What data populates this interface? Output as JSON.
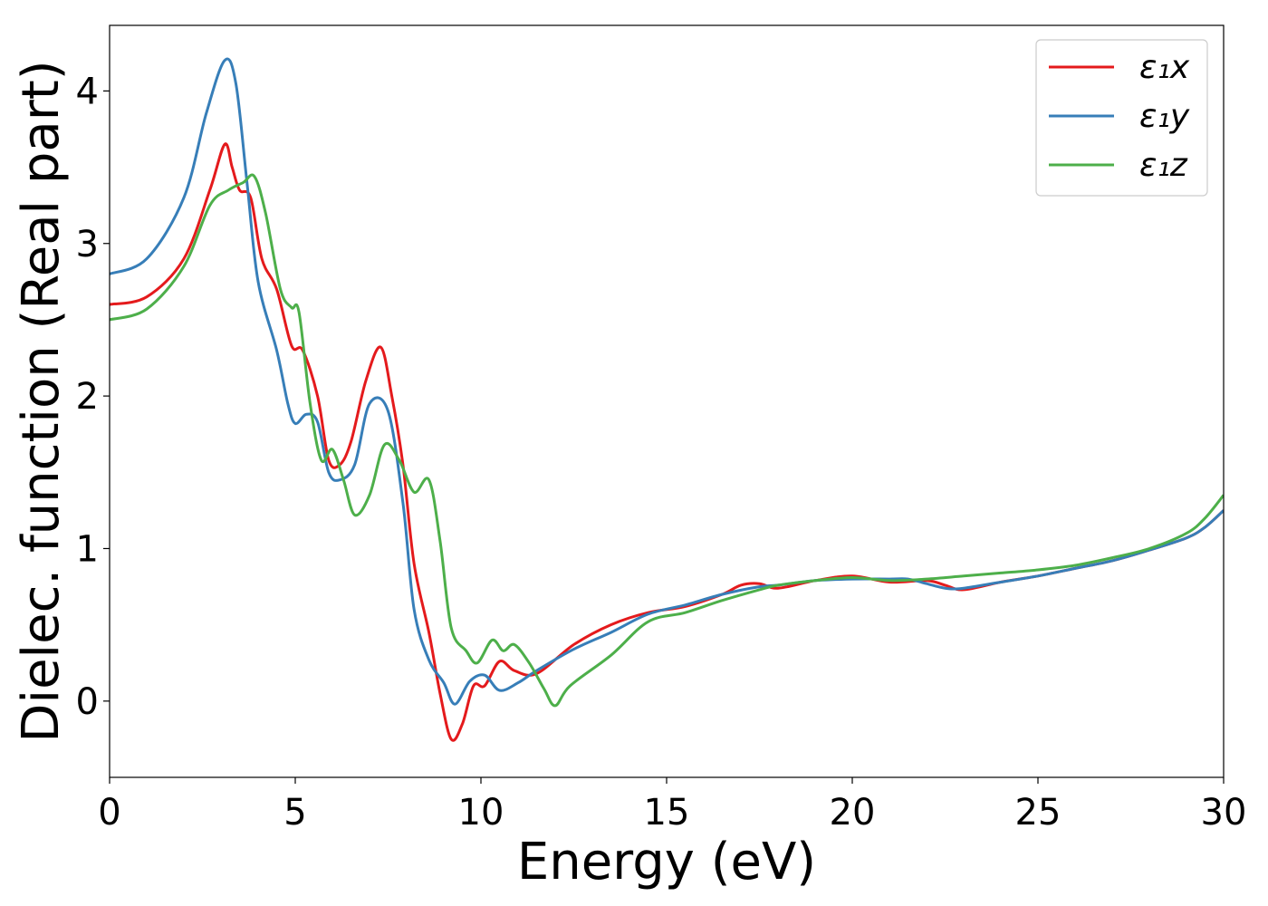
{
  "chart_data": {
    "type": "line",
    "xlabel": "Energy (eV)",
    "ylabel": "Dielec. function (Real part)",
    "xlim": [
      0,
      30
    ],
    "ylim": [
      -0.5,
      4.43
    ],
    "xticks": [
      0,
      5,
      10,
      15,
      20,
      25,
      30
    ],
    "yticks": [
      0,
      1,
      2,
      3,
      4
    ],
    "grid": false,
    "legend_position": "top-right",
    "series": [
      {
        "name": "ε₁x",
        "color": "#e41a1c",
        "points": [
          [
            0,
            2.6
          ],
          [
            1,
            2.65
          ],
          [
            2,
            2.9
          ],
          [
            2.7,
            3.35
          ],
          [
            3.1,
            3.65
          ],
          [
            3.3,
            3.5
          ],
          [
            3.5,
            3.35
          ],
          [
            3.8,
            3.3
          ],
          [
            4.1,
            2.9
          ],
          [
            4.5,
            2.7
          ],
          [
            4.9,
            2.33
          ],
          [
            5.2,
            2.3
          ],
          [
            5.6,
            2.0
          ],
          [
            5.9,
            1.58
          ],
          [
            6.2,
            1.55
          ],
          [
            6.5,
            1.7
          ],
          [
            6.9,
            2.1
          ],
          [
            7.3,
            2.32
          ],
          [
            7.6,
            2.0
          ],
          [
            7.9,
            1.55
          ],
          [
            8.2,
            0.9
          ],
          [
            8.6,
            0.45
          ],
          [
            8.9,
            0.05
          ],
          [
            9.2,
            -0.25
          ],
          [
            9.5,
            -0.15
          ],
          [
            9.8,
            0.1
          ],
          [
            10.1,
            0.1
          ],
          [
            10.5,
            0.26
          ],
          [
            10.9,
            0.2
          ],
          [
            11.5,
            0.18
          ],
          [
            12.5,
            0.37
          ],
          [
            13.5,
            0.5
          ],
          [
            14.5,
            0.58
          ],
          [
            15.5,
            0.62
          ],
          [
            16.5,
            0.7
          ],
          [
            17,
            0.76
          ],
          [
            17.5,
            0.77
          ],
          [
            18,
            0.74
          ],
          [
            19,
            0.79
          ],
          [
            20,
            0.82
          ],
          [
            21,
            0.78
          ],
          [
            22,
            0.79
          ],
          [
            22.5,
            0.76
          ],
          [
            23,
            0.73
          ],
          [
            24,
            0.78
          ],
          [
            25,
            0.82
          ],
          [
            26,
            0.87
          ],
          [
            27,
            0.92
          ],
          [
            28,
            0.99
          ],
          [
            29,
            1.07
          ],
          [
            29.5,
            1.14
          ],
          [
            30,
            1.25
          ]
        ]
      },
      {
        "name": "ε₁y",
        "color": "#377eb8",
        "points": [
          [
            0,
            2.8
          ],
          [
            1,
            2.9
          ],
          [
            2,
            3.3
          ],
          [
            2.6,
            3.85
          ],
          [
            3.1,
            4.2
          ],
          [
            3.4,
            4.05
          ],
          [
            3.7,
            3.4
          ],
          [
            4.0,
            2.75
          ],
          [
            4.5,
            2.3
          ],
          [
            4.8,
            1.95
          ],
          [
            5.0,
            1.82
          ],
          [
            5.3,
            1.88
          ],
          [
            5.6,
            1.83
          ],
          [
            5.9,
            1.5
          ],
          [
            6.2,
            1.45
          ],
          [
            6.6,
            1.55
          ],
          [
            7.0,
            1.95
          ],
          [
            7.5,
            1.9
          ],
          [
            7.9,
            1.3
          ],
          [
            8.2,
            0.6
          ],
          [
            8.6,
            0.27
          ],
          [
            9.0,
            0.12
          ],
          [
            9.3,
            -0.02
          ],
          [
            9.7,
            0.13
          ],
          [
            10.1,
            0.17
          ],
          [
            10.5,
            0.07
          ],
          [
            11.0,
            0.12
          ],
          [
            11.5,
            0.2
          ],
          [
            12.5,
            0.34
          ],
          [
            13.5,
            0.45
          ],
          [
            14.5,
            0.57
          ],
          [
            15.5,
            0.63
          ],
          [
            16.5,
            0.7
          ],
          [
            17.5,
            0.75
          ],
          [
            18,
            0.76
          ],
          [
            19,
            0.79
          ],
          [
            20,
            0.8
          ],
          [
            21,
            0.8
          ],
          [
            21.5,
            0.8
          ],
          [
            22,
            0.77
          ],
          [
            22.5,
            0.74
          ],
          [
            23,
            0.74
          ],
          [
            24,
            0.78
          ],
          [
            25,
            0.82
          ],
          [
            26,
            0.87
          ],
          [
            27,
            0.92
          ],
          [
            28,
            0.99
          ],
          [
            29,
            1.07
          ],
          [
            29.5,
            1.14
          ],
          [
            30,
            1.25
          ]
        ]
      },
      {
        "name": "ε₁z",
        "color": "#4daf4a",
        "points": [
          [
            0,
            2.5
          ],
          [
            1,
            2.57
          ],
          [
            2,
            2.85
          ],
          [
            2.7,
            3.25
          ],
          [
            3.2,
            3.35
          ],
          [
            3.6,
            3.4
          ],
          [
            3.9,
            3.44
          ],
          [
            4.2,
            3.2
          ],
          [
            4.6,
            2.7
          ],
          [
            4.9,
            2.58
          ],
          [
            5.1,
            2.55
          ],
          [
            5.4,
            1.95
          ],
          [
            5.7,
            1.58
          ],
          [
            6.0,
            1.65
          ],
          [
            6.3,
            1.45
          ],
          [
            6.6,
            1.22
          ],
          [
            7.0,
            1.35
          ],
          [
            7.4,
            1.68
          ],
          [
            7.8,
            1.58
          ],
          [
            8.2,
            1.37
          ],
          [
            8.6,
            1.45
          ],
          [
            8.9,
            1.05
          ],
          [
            9.2,
            0.48
          ],
          [
            9.6,
            0.33
          ],
          [
            9.9,
            0.25
          ],
          [
            10.3,
            0.4
          ],
          [
            10.6,
            0.33
          ],
          [
            10.9,
            0.37
          ],
          [
            11.3,
            0.25
          ],
          [
            11.7,
            0.08
          ],
          [
            12.0,
            -0.03
          ],
          [
            12.4,
            0.1
          ],
          [
            13.5,
            0.3
          ],
          [
            14.5,
            0.52
          ],
          [
            15.5,
            0.58
          ],
          [
            16.5,
            0.66
          ],
          [
            17.5,
            0.73
          ],
          [
            18,
            0.76
          ],
          [
            19,
            0.79
          ],
          [
            20,
            0.81
          ],
          [
            21,
            0.79
          ],
          [
            22,
            0.8
          ],
          [
            23,
            0.82
          ],
          [
            24,
            0.84
          ],
          [
            25,
            0.86
          ],
          [
            26,
            0.89
          ],
          [
            27,
            0.94
          ],
          [
            28,
            1.0
          ],
          [
            29,
            1.1
          ],
          [
            29.5,
            1.2
          ],
          [
            30,
            1.35
          ]
        ]
      }
    ]
  }
}
